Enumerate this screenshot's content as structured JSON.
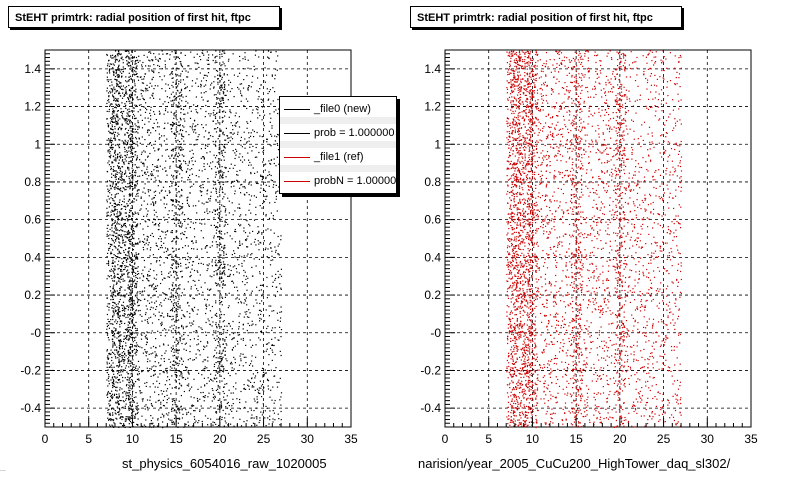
{
  "panels": [
    {
      "title": "StEHT primtrk: radial position of first hit, ftpc",
      "x_caption": "st_physics_6054016_raw_1020005"
    },
    {
      "title": "StEHT primtrk: radial position of first hit, ftpc",
      "x_caption": "narision/year_2005_CuCu200_HighTower_daq_sl302/"
    }
  ],
  "legend": {
    "entries": [
      {
        "label": "_file0 (new)",
        "color": "#000000"
      },
      {
        "label": "prob = 1.000000",
        "color": "#000000"
      },
      {
        "label": "_file1 (ref)",
        "color": "#cc0000"
      },
      {
        "label": "probN = 1.000000",
        "color": "#cc0000"
      }
    ]
  },
  "footer_text": "...",
  "chart_data": [
    {
      "type": "scatter",
      "title": "StEHT primtrk: radial position of first hit, ftpc",
      "xlabel": "st_physics_6054016_raw_1020005",
      "ylabel": "",
      "xlim": [
        0,
        35
      ],
      "ylim": [
        -0.5,
        1.5
      ],
      "x_ticks": [
        "0",
        "5",
        "10",
        "15",
        "20",
        "25",
        "30",
        "35"
      ],
      "y_ticks": [
        "-0.4",
        "-0.2",
        "-0",
        "0.2",
        "0.4",
        "0.6",
        "0.8",
        "1",
        "1.2",
        "1.4"
      ],
      "grid": true,
      "marker_color": "#000000",
      "series": [
        {
          "x_range": [
            7,
            27
          ],
          "y_range": [
            -0.5,
            1.5
          ],
          "density_peaks_x": [
            8,
            10,
            15,
            20
          ]
        }
      ]
    },
    {
      "type": "scatter",
      "title": "StEHT primtrk: radial position of first hit, ftpc",
      "xlabel": "narision/year_2005_CuCu200_HighTower_daq_sl302/",
      "ylabel": "",
      "xlim": [
        0,
        35
      ],
      "ylim": [
        -0.5,
        1.5
      ],
      "x_ticks": [
        "0",
        "5",
        "10",
        "15",
        "20",
        "25",
        "30",
        "35"
      ],
      "y_ticks": [
        "-0.4",
        "-0.2",
        "-0",
        "0.2",
        "0.4",
        "0.6",
        "0.8",
        "1",
        "1.2",
        "1.4"
      ],
      "grid": true,
      "marker_color": "#cc0000",
      "series": [
        {
          "x_range": [
            7,
            27
          ],
          "y_range": [
            -0.5,
            1.5
          ],
          "density_peaks_x": [
            8,
            10,
            15,
            20
          ]
        }
      ]
    }
  ]
}
